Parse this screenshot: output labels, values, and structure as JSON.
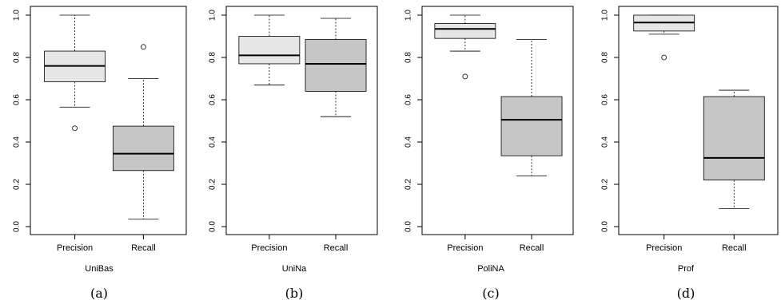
{
  "figure": {
    "captions": [
      "(a)",
      "(b)",
      "(c)",
      "(d)"
    ],
    "colors": {
      "precision_fill": "#e6e6e6",
      "recall_fill": "#c6c6c6",
      "stroke": "#000000",
      "frame": "#000000"
    }
  },
  "chart_data": [
    {
      "type": "box",
      "xlabel": "UniBas",
      "ylabel": "",
      "ylim": [
        0,
        1
      ],
      "yticks": [
        "0.0",
        "0.2",
        "0.4",
        "0.6",
        "0.8",
        "1.0"
      ],
      "categories": [
        "Precision",
        "Recall"
      ],
      "boxes": [
        {
          "name": "Precision",
          "min": 0.565,
          "q1": 0.685,
          "median": 0.76,
          "q3": 0.83,
          "max": 1.0,
          "outliers": [
            0.465
          ]
        },
        {
          "name": "Recall",
          "min": 0.035,
          "q1": 0.265,
          "median": 0.345,
          "q3": 0.475,
          "max": 0.7,
          "outliers": [
            0.85
          ]
        }
      ]
    },
    {
      "type": "box",
      "xlabel": "UniNa",
      "ylabel": "",
      "ylim": [
        0,
        1
      ],
      "yticks": [
        "0.0",
        "0.2",
        "0.4",
        "0.6",
        "0.8",
        "1.0"
      ],
      "categories": [
        "Precision",
        "Recall"
      ],
      "boxes": [
        {
          "name": "Precision",
          "min": 0.67,
          "q1": 0.77,
          "median": 0.81,
          "q3": 0.9,
          "max": 1.0,
          "outliers": []
        },
        {
          "name": "Recall",
          "min": 0.52,
          "q1": 0.64,
          "median": 0.77,
          "q3": 0.885,
          "max": 0.985,
          "outliers": []
        }
      ]
    },
    {
      "type": "box",
      "xlabel": "PoliNA",
      "ylabel": "",
      "ylim": [
        0,
        1
      ],
      "yticks": [
        "0.0",
        "0.2",
        "0.4",
        "0.6",
        "0.8",
        "1.0"
      ],
      "categories": [
        "Precision",
        "Recall"
      ],
      "boxes": [
        {
          "name": "Precision",
          "min": 0.83,
          "q1": 0.89,
          "median": 0.935,
          "q3": 0.96,
          "max": 1.0,
          "outliers": [
            0.71
          ]
        },
        {
          "name": "Recall",
          "min": 0.24,
          "q1": 0.335,
          "median": 0.505,
          "q3": 0.615,
          "max": 0.885,
          "outliers": []
        }
      ]
    },
    {
      "type": "box",
      "xlabel": "Prof",
      "ylabel": "",
      "ylim": [
        0,
        1
      ],
      "yticks": [
        "0.0",
        "0.2",
        "0.4",
        "0.6",
        "0.8",
        "1.0"
      ],
      "categories": [
        "Precision",
        "Recall"
      ],
      "boxes": [
        {
          "name": "Precision",
          "min": 0.91,
          "q1": 0.925,
          "median": 0.965,
          "q3": 1.0,
          "max": 1.0,
          "outliers": [
            0.8
          ]
        },
        {
          "name": "Recall",
          "min": 0.085,
          "q1": 0.22,
          "median": 0.325,
          "q3": 0.615,
          "max": 0.645,
          "outliers": []
        }
      ]
    }
  ]
}
